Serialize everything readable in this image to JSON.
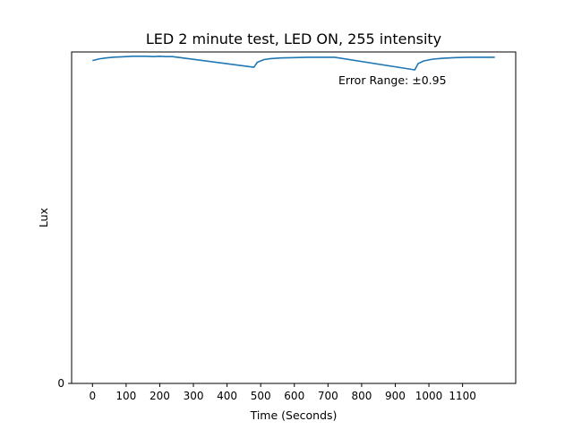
{
  "chart_data": {
    "type": "line",
    "title": "LED 2 minute test, LED ON, 255 intensity",
    "xlabel": "Time (Seconds)",
    "ylabel": "Lux",
    "xlim": [
      -62,
      1258
    ],
    "ylim": [
      0,
      100
    ],
    "x_ticks": [
      0,
      100,
      200,
      300,
      400,
      500,
      600,
      700,
      800,
      900,
      1000,
      1100
    ],
    "y_ticks": [
      0
    ],
    "grid": false,
    "annotation": "Error Range: ±0.95",
    "series": [
      {
        "color": "#1f77b4",
        "points": [
          [
            0,
            97.4
          ],
          [
            20,
            97.9
          ],
          [
            40,
            98.2
          ],
          [
            60,
            98.4
          ],
          [
            80,
            98.5
          ],
          [
            100,
            98.6
          ],
          [
            120,
            98.7
          ],
          [
            140,
            98.7
          ],
          [
            160,
            98.7
          ],
          [
            180,
            98.6
          ],
          [
            200,
            98.7
          ],
          [
            220,
            98.6
          ],
          [
            238,
            98.6
          ],
          [
            480,
            95.4
          ],
          [
            490,
            96.9
          ],
          [
            510,
            97.7
          ],
          [
            530,
            98.0
          ],
          [
            560,
            98.2
          ],
          [
            600,
            98.3
          ],
          [
            640,
            98.4
          ],
          [
            680,
            98.4
          ],
          [
            720,
            98.4
          ],
          [
            958,
            94.6
          ],
          [
            968,
            96.5
          ],
          [
            985,
            97.3
          ],
          [
            1010,
            97.8
          ],
          [
            1040,
            98.1
          ],
          [
            1080,
            98.3
          ],
          [
            1120,
            98.4
          ],
          [
            1160,
            98.4
          ],
          [
            1196,
            98.4
          ]
        ]
      }
    ]
  }
}
